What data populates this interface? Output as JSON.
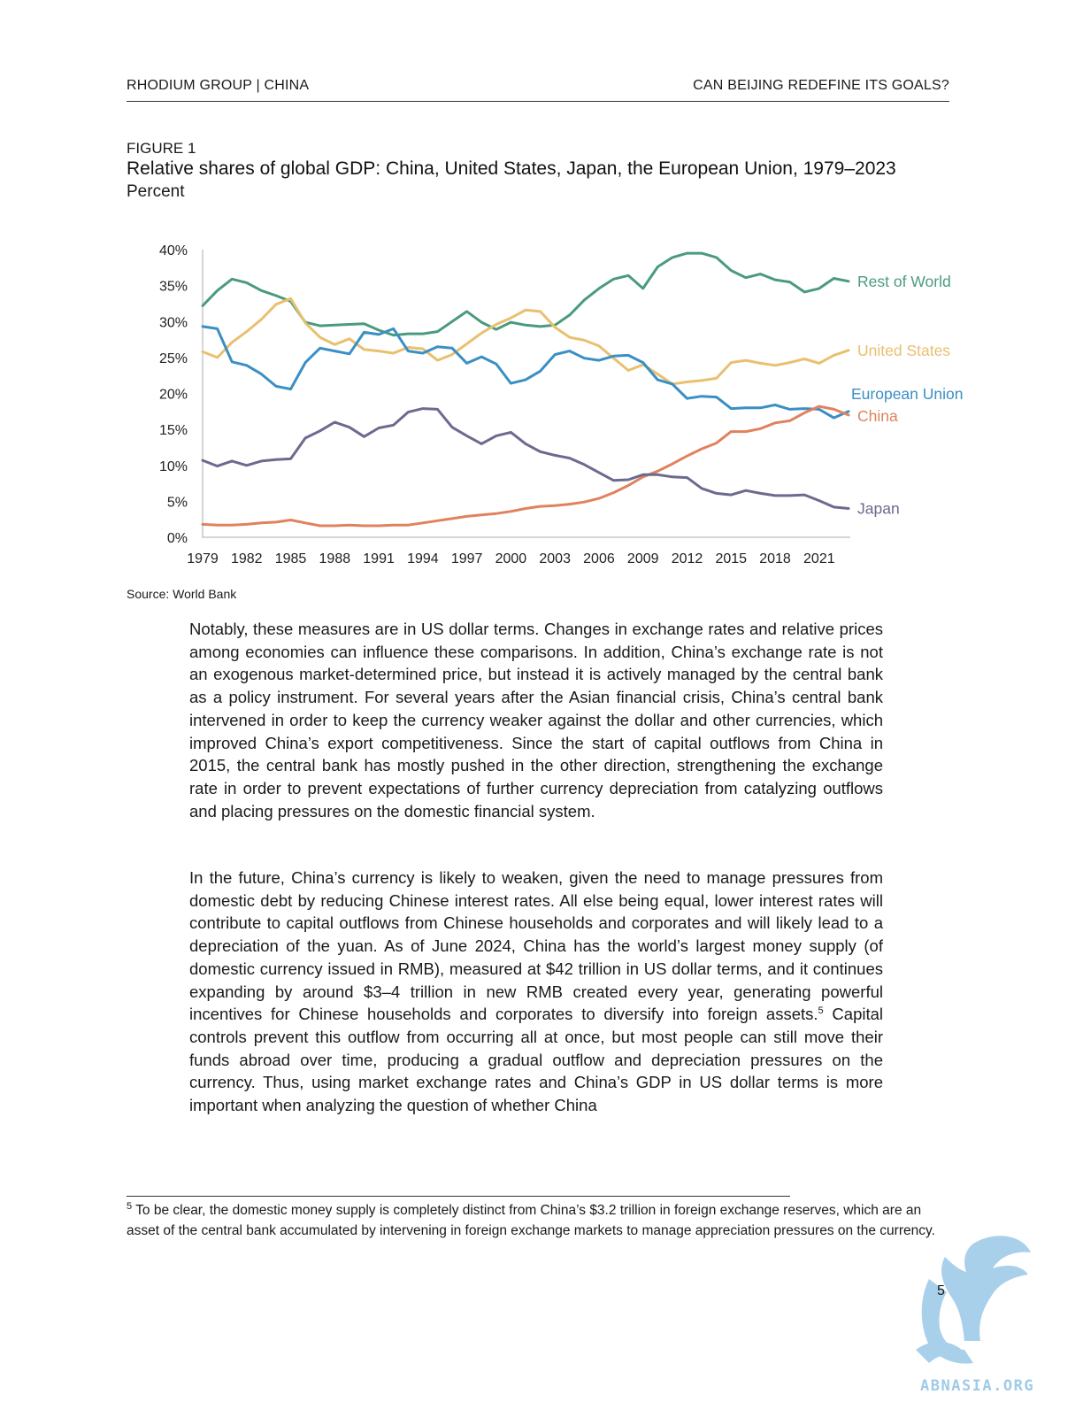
{
  "header": {
    "left": "RHODIUM GROUP  |  CHINA",
    "right": "CAN BEIJING REDEFINE ITS GOALS?"
  },
  "figure": {
    "label": "FIGURE 1",
    "title": "Relative shares of global GDP: China, United States, Japan, the European Union, 1979–2023",
    "unit": "Percent",
    "source": "Source: World Bank"
  },
  "chart_data": {
    "type": "line",
    "title": "Relative shares of global GDP: China, United States, Japan, the European Union, 1979–2023",
    "ylabel": "Percent",
    "xlabel": "",
    "ylim": [
      0,
      40
    ],
    "yticks": [
      0,
      5,
      10,
      15,
      20,
      25,
      30,
      35,
      40
    ],
    "ytick_labels": [
      "0%",
      "5%",
      "10%",
      "15%",
      "20%",
      "25%",
      "30%",
      "35%",
      "40%"
    ],
    "xticks": [
      1979,
      1982,
      1985,
      1988,
      1991,
      1994,
      1997,
      2000,
      2003,
      2006,
      2009,
      2012,
      2015,
      2018,
      2021
    ],
    "grid": false,
    "legend": "labels at right end of each line",
    "x": [
      1979,
      1980,
      1981,
      1982,
      1983,
      1984,
      1985,
      1986,
      1987,
      1988,
      1989,
      1990,
      1991,
      1992,
      1993,
      1994,
      1995,
      1996,
      1997,
      1998,
      1999,
      2000,
      2001,
      2002,
      2003,
      2004,
      2005,
      2006,
      2007,
      2008,
      2009,
      2010,
      2011,
      2012,
      2013,
      2014,
      2015,
      2016,
      2017,
      2018,
      2019,
      2020,
      2021,
      2022,
      2023
    ],
    "series": [
      {
        "name": "Rest of World",
        "color": "#4a9b7c",
        "values": [
          32.2,
          34.3,
          35.9,
          35.4,
          34.3,
          33.6,
          32.8,
          29.9,
          29.4,
          29.5,
          29.6,
          29.7,
          28.8,
          28.1,
          28.3,
          28.3,
          28.6,
          30.0,
          31.4,
          29.9,
          28.9,
          29.9,
          29.5,
          29.3,
          29.5,
          30.9,
          33.0,
          34.6,
          35.9,
          36.4,
          34.6,
          37.6,
          38.9,
          39.5,
          39.5,
          38.9,
          37.1,
          36.1,
          36.6,
          35.8,
          35.5,
          34.1,
          34.6,
          36.0,
          35.6
        ]
      },
      {
        "name": "United States",
        "color": "#e8c070",
        "values": [
          25.8,
          25.0,
          27.1,
          28.6,
          30.3,
          32.4,
          33.2,
          29.8,
          27.8,
          26.8,
          27.6,
          26.1,
          25.9,
          25.6,
          26.4,
          26.2,
          24.6,
          25.4,
          26.9,
          28.4,
          29.6,
          30.5,
          31.6,
          31.4,
          29.2,
          27.8,
          27.4,
          26.6,
          24.9,
          23.2,
          24.0,
          22.7,
          21.3,
          21.6,
          21.8,
          22.1,
          24.3,
          24.6,
          24.2,
          23.9,
          24.3,
          24.8,
          24.2,
          25.3,
          26.0
        ]
      },
      {
        "name": "European Union",
        "color": "#3a8fc4",
        "values": [
          29.3,
          29.0,
          24.4,
          23.9,
          22.7,
          21.0,
          20.6,
          24.3,
          26.3,
          25.9,
          25.5,
          28.5,
          28.2,
          29.0,
          25.9,
          25.6,
          26.5,
          26.3,
          24.2,
          25.1,
          24.1,
          21.4,
          21.9,
          23.1,
          25.4,
          25.9,
          24.9,
          24.6,
          25.2,
          25.3,
          24.3,
          21.9,
          21.3,
          19.3,
          19.6,
          19.5,
          17.9,
          18.0,
          18.0,
          18.4,
          17.8,
          17.9,
          17.8,
          16.6,
          17.5
        ]
      },
      {
        "name": "China",
        "color": "#e0825e",
        "values": [
          1.8,
          1.7,
          1.7,
          1.8,
          2.0,
          2.1,
          2.4,
          2.0,
          1.6,
          1.6,
          1.7,
          1.6,
          1.6,
          1.7,
          1.7,
          2.0,
          2.3,
          2.6,
          2.9,
          3.1,
          3.3,
          3.6,
          4.0,
          4.3,
          4.4,
          4.6,
          4.9,
          5.4,
          6.2,
          7.2,
          8.4,
          9.2,
          10.2,
          11.3,
          12.3,
          13.1,
          14.7,
          14.7,
          15.1,
          15.9,
          16.2,
          17.3,
          18.2,
          17.8,
          17.0
        ]
      },
      {
        "name": "Japan",
        "color": "#6b6a8f",
        "values": [
          10.7,
          9.9,
          10.6,
          10.0,
          10.6,
          10.8,
          10.9,
          13.8,
          14.8,
          16.0,
          15.3,
          14.0,
          15.2,
          15.6,
          17.4,
          17.9,
          17.8,
          15.3,
          14.1,
          13.0,
          14.1,
          14.6,
          13.0,
          11.9,
          11.4,
          11.0,
          10.1,
          9.0,
          7.9,
          8.0,
          8.7,
          8.7,
          8.4,
          8.3,
          6.8,
          6.1,
          5.9,
          6.5,
          6.1,
          5.8,
          5.8,
          5.9,
          5.1,
          4.2,
          4.0
        ]
      }
    ]
  },
  "body": {
    "p1": "Notably, these measures are in US dollar terms. Changes in exchange rates and relative prices among economies can influence these comparisons. In addition, China’s exchange rate is not an exogenous market-determined price, but instead it is actively managed by the central bank as a policy instrument. For several years after the Asian financial crisis, China’s central bank intervened in order to keep the currency weaker against the dollar and other currencies, which improved China’s export competitiveness. Since the start of capital outflows from China in 2015, the central bank has mostly pushed in the other direction, strengthening the exchange rate in order to prevent expectations of further currency depreciation from catalyzing outflows and placing pressures on the domestic financial system.",
    "p2_a": "In the future, China’s currency is likely to weaken, given the need to manage pressures from domestic debt by reducing Chinese interest rates. All else being equal, lower interest rates will contribute to capital outflows from Chinese households and corporates and will likely lead to a depreciation of the yuan. As of June 2024, China has the world’s largest money supply (of domestic currency issued in RMB), measured at $42 trillion in US dollar terms, and  it continues expanding by around $3–4 trillion in new RMB created every year, generating powerful incentives for Chinese households and corporates to diversify into foreign assets.",
    "p2_sup": "5",
    "p2_b": " Capital controls prevent this outflow from occurring all at once, but most people can still move their funds abroad over time, producing a gradual outflow and depreciation pressures on the currency. Thus, using market exchange rates and China’s GDP in US dollar terms is more important when analyzing the question of whether China"
  },
  "footnote": {
    "marker": "5",
    "text": " To be clear, the domestic money supply is completely distinct from China’s $3.2 trillion in foreign exchange reserves, which are an asset of the central bank accumulated by intervening in foreign exchange markets to manage appreciation pressures on the currency."
  },
  "page_number": "5",
  "watermark": {
    "text": "ABNASIA.ORG",
    "icon": "griffin-logo-icon",
    "color": "#9fcbe8"
  }
}
